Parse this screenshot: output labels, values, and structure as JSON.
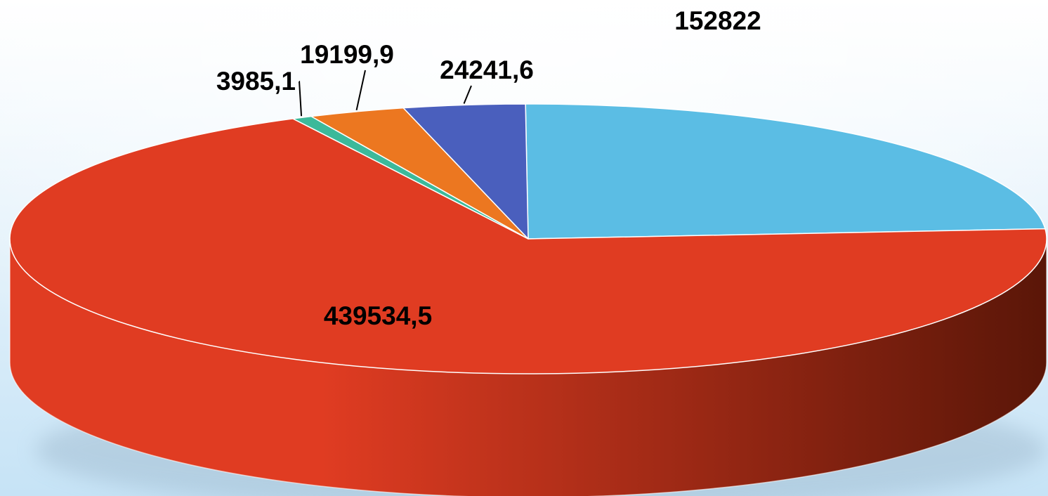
{
  "chart_data": {
    "type": "pie",
    "style": "3d",
    "title": "",
    "slices": [
      {
        "value": 152822,
        "label": "152822",
        "color": "#5bbde4"
      },
      {
        "value": 439534.5,
        "label": "439534,5",
        "color": "#e03c22"
      },
      {
        "value": 3985.1,
        "label": "3985,1",
        "color": "#3cb99a"
      },
      {
        "value": 19199.9,
        "label": "19199,9",
        "color": "#ec7720"
      },
      {
        "value": 24241.6,
        "label": "24241,6",
        "color": "#4a5fbd"
      }
    ],
    "background": {
      "top": "#ffffff",
      "bottom": "#c6e3f6"
    },
    "side_gradient": {
      "light": "#e03c22",
      "dark": "#5a1608"
    }
  }
}
